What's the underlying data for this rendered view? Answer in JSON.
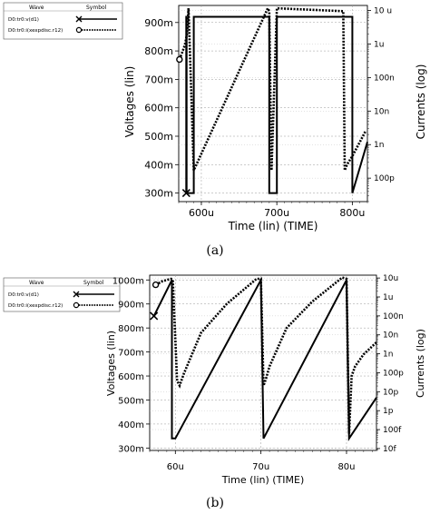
{
  "chart_data": [
    {
      "type": "line",
      "panel_label": "(a)",
      "xlabel": "Time (lin) (TIME)",
      "ylabel_left": "Voltages (lin)",
      "ylabel_right": "Currents (log)",
      "x_ticks": [
        "600u",
        "700u",
        "800u"
      ],
      "x_tick_values": [
        600,
        700,
        800
      ],
      "xlim": [
        570,
        820
      ],
      "ylim_left": [
        270,
        960
      ],
      "y_left_ticks": [
        "300m",
        "400m",
        "500m",
        "600m",
        "700m",
        "800m",
        "900m"
      ],
      "y_left_tick_values": [
        300,
        400,
        500,
        600,
        700,
        800,
        900
      ],
      "y_right_ticks": [
        "10 u",
        "1u",
        "100n",
        "10n",
        "1n",
        "100p"
      ],
      "y_right_tick_exponents": [
        -5,
        -6,
        -7,
        -8,
        -9,
        -10
      ],
      "ylim_right_log10": [
        -10.7,
        -4.85
      ],
      "legend": {
        "header": [
          "Wave",
          "Symbol"
        ],
        "entries": [
          {
            "label": "D0:tr0:v(d1)",
            "symbol": "x-solid"
          },
          {
            "label": "D0:tr0:i(xexpdisc.r12)",
            "symbol": "o-dotted"
          }
        ]
      },
      "series": [
        {
          "name": "D0:tr0:v(d1)",
          "axis": "left",
          "style": "solid",
          "x": [
            580,
            580,
            580.5,
            580.5,
            590,
            590,
            690,
            690,
            700,
            700,
            800,
            800,
            820
          ],
          "y": [
            300,
            920,
            920,
            300,
            300,
            920,
            920,
            300,
            300,
            920,
            920,
            300,
            480
          ]
        },
        {
          "name": "D0:tr0:i(xexpdisc.r12)",
          "axis": "left-equivalent",
          "style": "dotted",
          "x": [
            571,
            574,
            578,
            581,
            583,
            590,
            688,
            690,
            693,
            700,
            788,
            790,
            793,
            800,
            810,
            818
          ],
          "y": [
            770,
            790,
            820,
            860,
            950,
            380,
            950,
            940,
            380,
            950,
            940,
            380,
            400,
            430,
            480,
            520
          ]
        }
      ]
    },
    {
      "type": "line",
      "panel_label": "(b)",
      "xlabel": "Time (lin) (TIME)",
      "ylabel_left": "Voltages (lin)",
      "ylabel_right": "Currents (log)",
      "x_ticks": [
        "60u",
        "70u",
        "80u"
      ],
      "x_tick_values": [
        60,
        70,
        80
      ],
      "xlim": [
        57,
        83.5
      ],
      "ylim_left": [
        290,
        1020
      ],
      "y_left_ticks": [
        "300m",
        "400m",
        "500m",
        "600m",
        "700m",
        "800m",
        "900m",
        "1000m"
      ],
      "y_left_tick_values": [
        300,
        400,
        500,
        600,
        700,
        800,
        900,
        1000
      ],
      "y_right_ticks": [
        "10u",
        "1u",
        "100n",
        "10n",
        "1n",
        "100p",
        "10p",
        "1p",
        "100f",
        "10f"
      ],
      "y_right_tick_exponents": [
        -5,
        -6,
        -7,
        -8,
        -9,
        -10,
        -11,
        -12,
        -13,
        -14
      ],
      "ylim_right_log10": [
        -14.1,
        -4.85
      ],
      "legend": {
        "header": [
          "Wave",
          "Symbol"
        ],
        "entries": [
          {
            "label": "D0:tr0:v(d1)",
            "symbol": "x-solid"
          },
          {
            "label": "D0:tr0:i(xexpdisc.r12)",
            "symbol": "o-dotted"
          }
        ]
      },
      "series": [
        {
          "name": "D0:tr0:v(d1)",
          "axis": "left",
          "style": "solid",
          "x": [
            57.5,
            59.6,
            59.6,
            60,
            70,
            70,
            70.3,
            80,
            80,
            80.3,
            83.5
          ],
          "y": [
            850,
            1000,
            340,
            340,
            1000,
            1000,
            340,
            1000,
            1000,
            340,
            510
          ]
        },
        {
          "name": "D0:tr0:i(xexpdisc.r12)",
          "axis": "left-equivalent",
          "style": "dotted",
          "x": [
            57.7,
            58.5,
            59.5,
            59.7,
            60.2,
            60.5,
            61,
            63,
            66,
            69.5,
            70,
            70.3,
            70.6,
            71,
            73,
            76,
            79.5,
            80,
            80.3,
            80.6,
            81,
            82,
            83.5
          ],
          "y": [
            980,
            995,
            1005,
            1000,
            580,
            560,
            610,
            780,
            900,
            1005,
            1005,
            560,
            590,
            640,
            800,
            910,
            1010,
            1005,
            360,
            600,
            640,
            690,
            740
          ]
        }
      ]
    }
  ]
}
